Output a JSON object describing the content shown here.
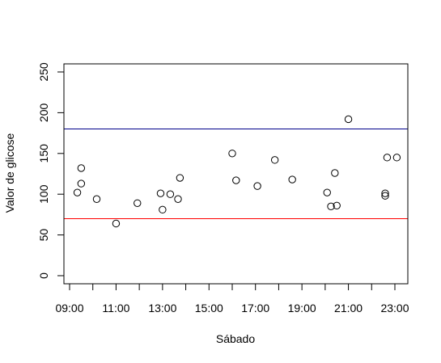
{
  "chart_data": {
    "type": "scatter",
    "title": "",
    "xlabel": "Sábado",
    "ylabel": "Valor de glicose",
    "xlim_hours": [
      9.0,
      23.4
    ],
    "ylim": [
      0,
      260
    ],
    "x_ticks": [
      {
        "label": "09:00",
        "hours": 9
      },
      {
        "label": "11:00",
        "hours": 11
      },
      {
        "label": "13:00",
        "hours": 13
      },
      {
        "label": "15:00",
        "hours": 15
      },
      {
        "label": "17:00",
        "hours": 17
      },
      {
        "label": "19:00",
        "hours": 19
      },
      {
        "label": "21:00",
        "hours": 21
      },
      {
        "label": "23:00",
        "hours": 23
      }
    ],
    "x_minor_ticks_hours": [
      10,
      12,
      14,
      16,
      18,
      20,
      22
    ],
    "y_ticks": [
      0,
      50,
      100,
      150,
      200,
      250
    ],
    "reference_lines": [
      {
        "y": 180,
        "color": "#00008b"
      },
      {
        "y": 70,
        "color": "#ff0000"
      }
    ],
    "grid": false,
    "points": [
      {
        "x": "09:20",
        "y": 102
      },
      {
        "x": "09:30",
        "y": 113
      },
      {
        "x": "09:30",
        "y": 132
      },
      {
        "x": "10:10",
        "y": 94
      },
      {
        "x": "11:00",
        "y": 64
      },
      {
        "x": "11:55",
        "y": 89
      },
      {
        "x": "12:55",
        "y": 101
      },
      {
        "x": "13:00",
        "y": 81
      },
      {
        "x": "13:20",
        "y": 100
      },
      {
        "x": "13:40",
        "y": 94
      },
      {
        "x": "13:45",
        "y": 120
      },
      {
        "x": "16:00",
        "y": 150
      },
      {
        "x": "16:10",
        "y": 117
      },
      {
        "x": "17:05",
        "y": 110
      },
      {
        "x": "17:50",
        "y": 142
      },
      {
        "x": "18:35",
        "y": 118
      },
      {
        "x": "20:05",
        "y": 102
      },
      {
        "x": "20:15",
        "y": 85
      },
      {
        "x": "20:25",
        "y": 126
      },
      {
        "x": "20:30",
        "y": 86
      },
      {
        "x": "21:00",
        "y": 192
      },
      {
        "x": "22:35",
        "y": 98
      },
      {
        "x": "22:35",
        "y": 101
      },
      {
        "x": "22:40",
        "y": 145
      },
      {
        "x": "23:05",
        "y": 145
      }
    ]
  }
}
